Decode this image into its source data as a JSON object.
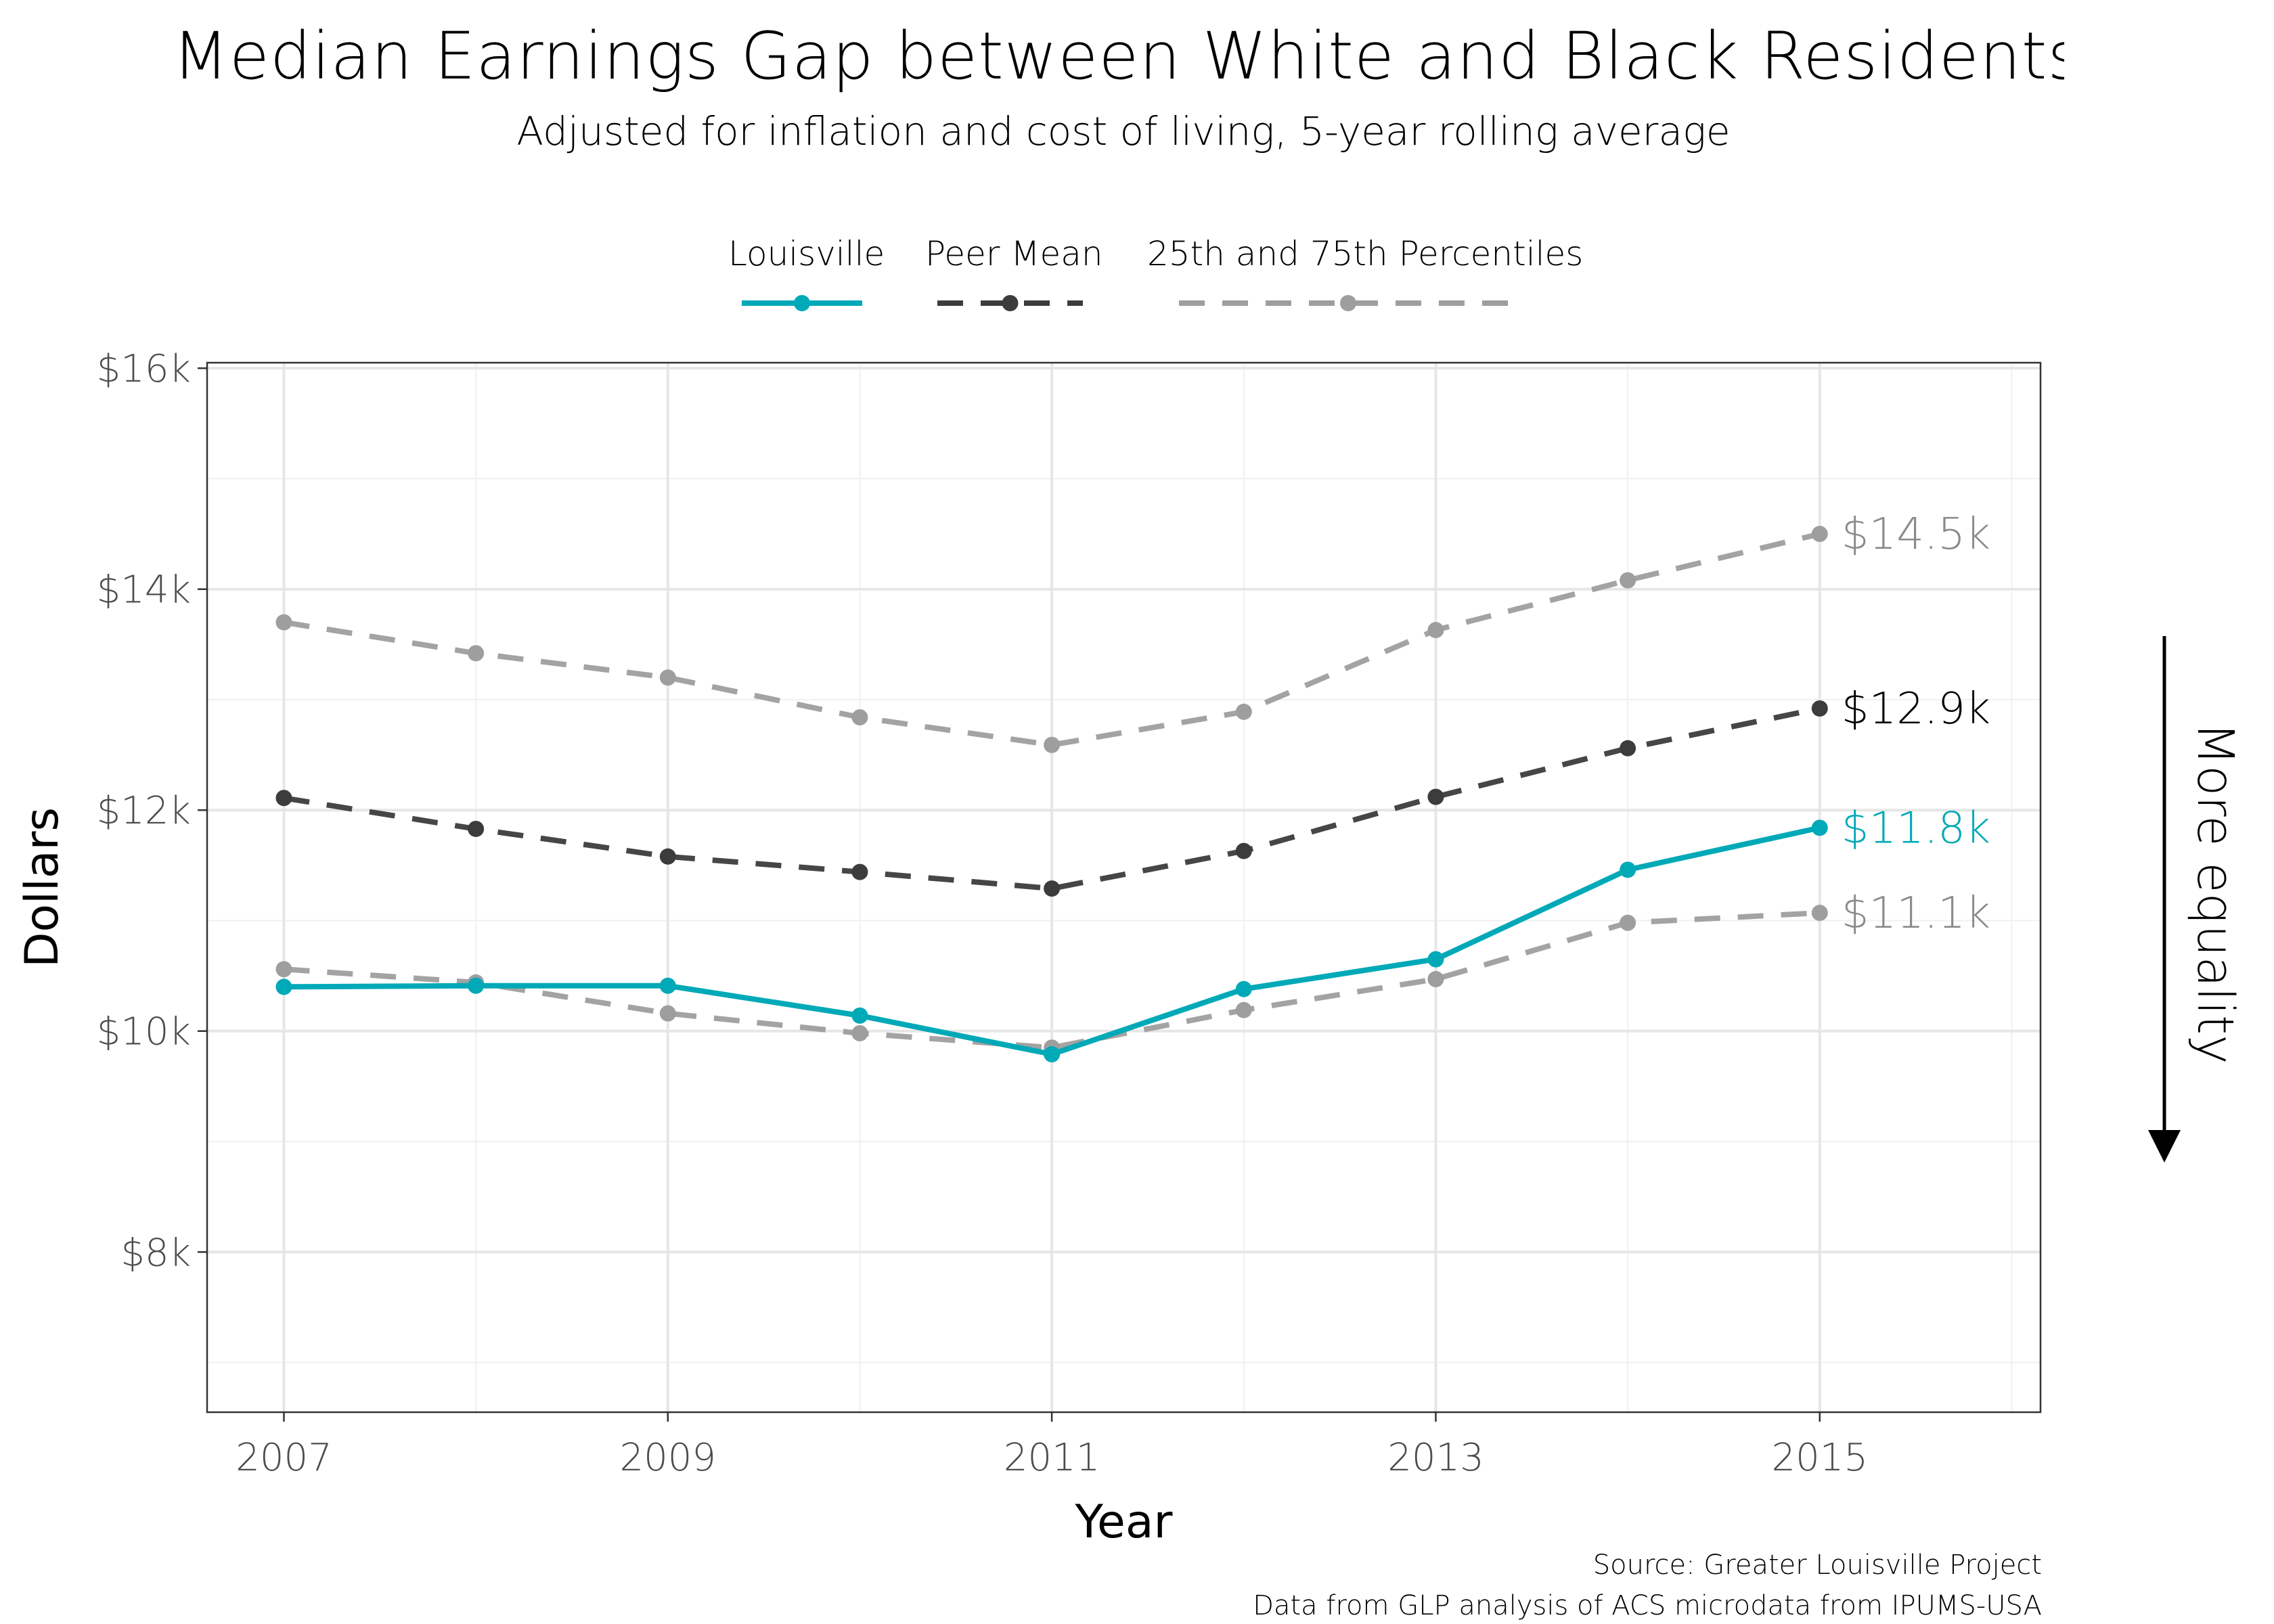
{
  "title": "Median Earnings Gap between White and Black Residents",
  "subtitle": "Adjusted for inflation and cost of living, 5-year rolling average",
  "caption": {
    "line1": "Source: Greater Louisville Project",
    "line2": "Data from GLP analysis of ACS microdata from IPUMS-USA"
  },
  "arrow_label": "More equality",
  "chart_data": {
    "type": "line",
    "xlabel": "Year",
    "ylabel": "Dollars",
    "x": [
      2007,
      2008,
      2009,
      2010,
      2011,
      2012,
      2013,
      2014,
      2015
    ],
    "x_ticks": [
      2007,
      2009,
      2011,
      2013,
      2015
    ],
    "x_tick_labels": [
      "2007",
      "2009",
      "2011",
      "2013",
      "2015"
    ],
    "xlim": [
      2006.6,
      2016.15
    ],
    "ylim": [
      6550,
      16050
    ],
    "y_ticks": [
      8000,
      10000,
      12000,
      14000,
      16000
    ],
    "y_tick_labels": [
      "$8k",
      "$10k",
      "$12k",
      "$14k",
      "$16k"
    ],
    "grid": true,
    "legend_position": "top",
    "legend": [
      "Louisville",
      "Peer Mean",
      "25th and 75th Percentiles"
    ],
    "series": [
      {
        "name": "Louisville",
        "style": "solid",
        "color": "#00A9B7",
        "values": [
          10400,
          10410,
          10410,
          10140,
          9790,
          10380,
          10650,
          11460,
          11840
        ],
        "end_label": "$11.8k"
      },
      {
        "name": "Peer Mean",
        "style": "dashed",
        "color": "#3C3C3C",
        "values": [
          12110,
          11830,
          11580,
          11440,
          11290,
          11630,
          12120,
          12560,
          12920
        ],
        "end_label": "$12.9k"
      },
      {
        "name": "25th and 75th Percentiles",
        "style": "dashed",
        "color": "#9E9E9E",
        "values": [
          13700,
          13420,
          13200,
          12840,
          12590,
          12890,
          13630,
          14080,
          14500
        ],
        "end_label": "$14.5k"
      },
      {
        "name": "25th and 75th Percentiles",
        "style": "dashed",
        "color": "#9E9E9E",
        "values": [
          10560,
          10440,
          10160,
          9980,
          9850,
          10190,
          10470,
          10980,
          11070
        ],
        "end_label": "$11.1k"
      }
    ]
  }
}
